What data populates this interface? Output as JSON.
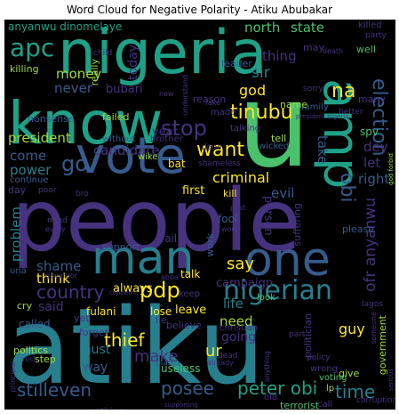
{
  "title": "Word Cloud for Negative Polarity - Atiku Abubakar",
  "colors": {
    "background": "#000000",
    "purple": "#46327e",
    "dark_purple": "#440154",
    "blue": "#365c8d",
    "teal": "#277f8e",
    "sea": "#1fa187",
    "green": "#4ac16d",
    "lime": "#a0da39",
    "yellow": "#fde725"
  },
  "words": {
    "atiku": "atiku",
    "people": "people",
    "nigeria": "nigeria",
    "u": "u",
    "know": "know",
    "vote": "vote",
    "amp": "amp",
    "man": "man",
    "one": "one",
    "nigerian": "nigerian",
    "apc": "apc",
    "tinubu": "tinubu",
    "stop": "stop",
    "want": "want",
    "go": "go",
    "na": "na",
    "pdp": "pdp",
    "country": "country",
    "thief": "thief",
    "peter_obi": "peter obi",
    "stilleven": "stilleven",
    "posee": "posee",
    "time": "time",
    "election": "election",
    "say": "say",
    "make": "make",
    "obi": "obi",
    "ofr_anyanwu": "ofr anyanwu",
    "president": "president",
    "candidate": "candidate",
    "criminal": "criminal",
    "come": "come",
    "power": "power",
    "god": "god",
    "sir": "sir",
    "thing": "thing",
    "north": "north",
    "state": "state",
    "money": "money",
    "never": "never",
    "bubari": "bubari",
    "year": "year",
    "shame": "shame",
    "think": "think",
    "problem": "problem",
    "life": "life",
    "need": "need",
    "guy": "guy",
    "going": "going",
    "way": "way",
    "must": "must",
    "said": "said",
    "evil": "evil",
    "person": "person",
    "campaign": "campaign",
    "dey": "dey",
    "let": "let",
    "right": "right",
    "take": "take",
    "today": "today",
    "first": "first",
    "leave": "leave",
    "ur": "ur",
    "fulani": "fulani",
    "lose": "lose",
    "always": "always",
    "anyanwu_dinomelaye": "anyanwu dinomelaye",
    "killing": "killing",
    "really": "really",
    "leader": "leader",
    "dinomelaye": "dinomelaye",
    "terrorist": "terrorist",
    "insult": "insult",
    "nothing": "nothing",
    "continue": "continue",
    "called": "called",
    "day": "day",
    "support": "support",
    "fool": "fool",
    "talk": "talk",
    "believe": "believe",
    "lie": "lie",
    "yet": "yet",
    "politics": "politics",
    "cry": "cry",
    "forget": "forget",
    "step": "step",
    "useless": "useless",
    "government": "government",
    "politician": "politician",
    "spv": "spv",
    "work": "work",
    "suffering": "suffering",
    "failed": "failed",
    "nonsense": "nonsense",
    "kill": "kill",
    "fail": "fail",
    "bat": "bat",
    "tell": "tell",
    "may": "may",
    "well": "well",
    "many": "many",
    "family": "family",
    "reason": "reason",
    "name": "name",
    "wike": "wike",
    "without": "without",
    "brother": "brother",
    "made": "made",
    "talking": "talking",
    "wicked": "wicked",
    "shameless": "shameless",
    "please": "please",
    "una": "una",
    "keep": "keep",
    "christian": "christian",
    "look": "look",
    "dead": "dead",
    "lagos": "lagos",
    "give": "give",
    "wrong": "wrong",
    "voting": "voting",
    "corruption": "corruption",
    "plan": "plan",
    "old": "old",
    "sorry": "sorry",
    "better": "better",
    "child": "child",
    "party": "party",
    "death": "death",
    "lp": "lp",
    "call": "call",
    "part": "part",
    "policy": "policy",
    "done": "done",
    "poor": "poor",
    "bro": "bro",
    "worst": "worst",
    "fake": "fake",
    "mind": "mind",
    "every": "every",
    "rest": "rest",
    "principal": "principal",
    "president_nigeria": "president nigeria",
    "governor": "governor",
    "abba": "abba",
    "condemn": "condemn",
    "understand": "understand",
    "new": "new",
    "killed": "killed",
    "supporting": "supporting",
    "anything": "anything",
    "serious": "serious",
    "god_forbid": "god forbid",
    "already": "already",
    "post": "post",
    "someone": "someone"
  }
}
